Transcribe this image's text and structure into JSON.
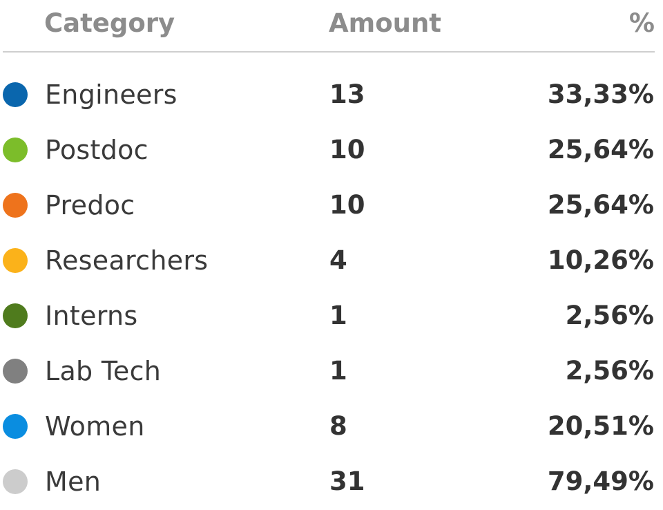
{
  "header": {
    "category": "Category",
    "amount": "Amount",
    "percent": "%"
  },
  "chart_data": {
    "type": "table",
    "columns": [
      "Category",
      "Amount",
      "%"
    ],
    "rows": [
      {
        "category": "Engineers",
        "amount": "13",
        "percent": "33,33%",
        "color": "#0a66ad"
      },
      {
        "category": "Postdoc",
        "amount": "10",
        "percent": "25,64%",
        "color": "#7cbd2a"
      },
      {
        "category": "Predoc",
        "amount": "10",
        "percent": "25,64%",
        "color": "#ee731c"
      },
      {
        "category": "Researchers",
        "amount": "4",
        "percent": "10,26%",
        "color": "#fbb21a"
      },
      {
        "category": "Interns",
        "amount": "1",
        "percent": "2,56%",
        "color": "#4f7b1d"
      },
      {
        "category": "Lab Tech",
        "amount": "1",
        "percent": "2,56%",
        "color": "#808080"
      },
      {
        "category": "Women",
        "amount": "8",
        "percent": "20,51%",
        "color": "#0a8de0"
      },
      {
        "category": "Men",
        "amount": "31",
        "percent": "79,49%",
        "color": "#cccccc"
      }
    ]
  }
}
